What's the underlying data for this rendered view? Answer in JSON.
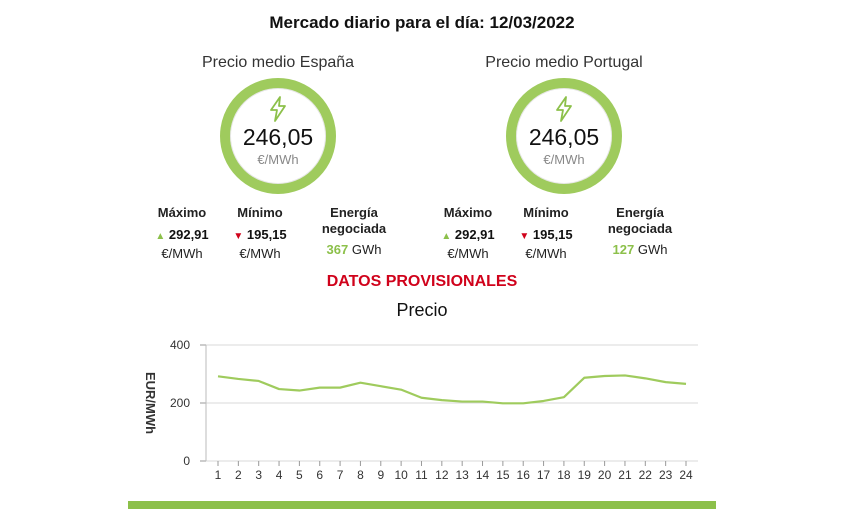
{
  "title": "Mercado diario para el día: 12/03/2022",
  "colors": {
    "accent": "#8cc04a",
    "ring": "#9fcb5d",
    "alert": "#d0021b"
  },
  "markets": [
    {
      "name": "Precio medio España",
      "icon": "lightning-bolt-icon",
      "price": "246,05",
      "price_unit": "€/MWh",
      "max_label": "Máximo",
      "max_value": "292,91",
      "max_unit": "€/MWh",
      "min_label": "Mínimo",
      "min_value": "195,15",
      "min_unit": "€/MWh",
      "energy_label_1": "Energía",
      "energy_label_2": "negociada",
      "energy_value": "367",
      "energy_unit": "GWh"
    },
    {
      "name": "Precio medio Portugal",
      "icon": "lightning-bolt-icon",
      "price": "246,05",
      "price_unit": "€/MWh",
      "max_label": "Máximo",
      "max_value": "292,91",
      "max_unit": "€/MWh",
      "min_label": "Mínimo",
      "min_value": "195,15",
      "min_unit": "€/MWh",
      "energy_label_1": "Energía",
      "energy_label_2": "negociada",
      "energy_value": "127",
      "energy_unit": "GWh"
    }
  ],
  "provisional_notice": "DATOS PROVISIONALES",
  "chart_data": {
    "type": "line",
    "title": "Precio",
    "xlabel": "",
    "ylabel": "EUR/MWh",
    "x": [
      1,
      2,
      3,
      4,
      5,
      6,
      7,
      8,
      9,
      10,
      11,
      12,
      13,
      14,
      15,
      16,
      17,
      18,
      19,
      20,
      21,
      22,
      23,
      24
    ],
    "series": [
      {
        "values": [
          292,
          283,
          276,
          248,
          243,
          253,
          253,
          270,
          258,
          246,
          218,
          210,
          205,
          205,
          199,
          199,
          207,
          220,
          287,
          293,
          295,
          285,
          272,
          266
        ]
      }
    ],
    "yticks": [
      0,
      200,
      400
    ],
    "ylim": [
      0,
      400
    ],
    "grid": "horizontal",
    "line_color": "#9fcb5d"
  }
}
